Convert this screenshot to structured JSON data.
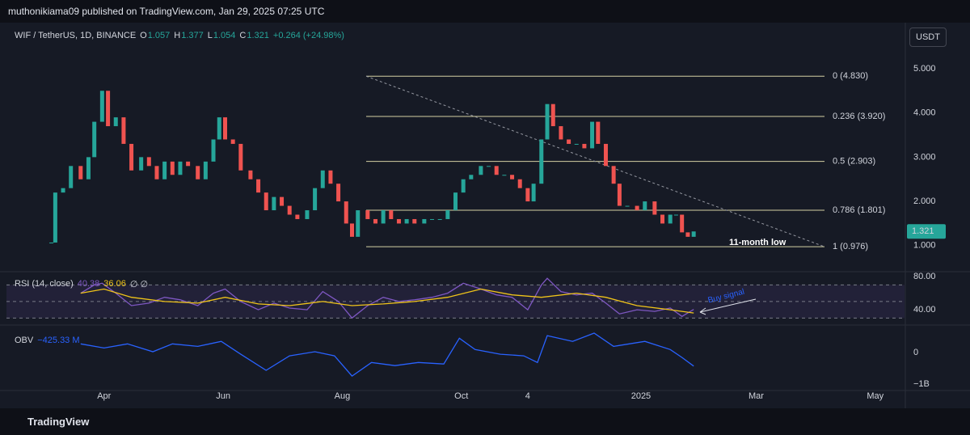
{
  "header": {
    "publisher": "muthonikiama09 published on TradingView.com, Jan 29, 2025 07:25 UTC"
  },
  "footer": {
    "brand": "TradingView"
  },
  "currency_button": "USDT",
  "chart_data": [
    {
      "type": "candlestick",
      "symbol": "WIF / TetherUS, 1D, BINANCE",
      "ohlc": [
        {
          "key": "O",
          "text": "1.057"
        },
        {
          "key": "H",
          "text": "1.377"
        },
        {
          "key": "L",
          "text": "1.054"
        },
        {
          "key": "C",
          "text": "1.321"
        }
      ],
      "change": "+0.264 (+24.98%)",
      "up_color": "#26a69a",
      "down_color": "#ef5350",
      "x": [
        -27,
        -25,
        -21,
        -17,
        -12,
        -8,
        -5,
        -1,
        2,
        6,
        10,
        14,
        19,
        23,
        27,
        31,
        35,
        39,
        43,
        48,
        52,
        56,
        59,
        62,
        66,
        70,
        75,
        79,
        83,
        87,
        91,
        95,
        99,
        104,
        108,
        112,
        116,
        120,
        124,
        127,
        130,
        135,
        139,
        143,
        147,
        151,
        155,
        159,
        164,
        168,
        172,
        176,
        180,
        184,
        188,
        193,
        197,
        201,
        205,
        209,
        213,
        217,
        220,
        224,
        227,
        230,
        234,
        238,
        242,
        246,
        250,
        253,
        257,
        261,
        264,
        268,
        273,
        277,
        282,
        286,
        290,
        293,
        296,
        299,
        302
      ],
      "values": [
        1.07,
        2.2,
        2.3,
        2.8,
        2.5,
        3.0,
        3.8,
        4.5,
        3.7,
        3.9,
        3.3,
        2.7,
        3.0,
        2.8,
        2.5,
        2.9,
        2.6,
        2.9,
        2.8,
        2.5,
        2.9,
        3.4,
        3.9,
        3.4,
        3.3,
        2.7,
        2.5,
        2.2,
        1.8,
        2.1,
        1.9,
        1.7,
        1.6,
        1.8,
        2.3,
        2.7,
        2.4,
        2.0,
        1.5,
        1.2,
        1.8,
        1.6,
        1.5,
        1.8,
        1.6,
        1.5,
        1.6,
        1.5,
        1.6,
        1.6,
        1.6,
        1.8,
        2.2,
        2.5,
        2.6,
        2.8,
        2.8,
        2.6,
        2.6,
        2.5,
        2.3,
        2.0,
        2.4,
        3.4,
        4.2,
        3.7,
        3.4,
        3.3,
        3.3,
        3.2,
        3.8,
        3.3,
        2.8,
        2.4,
        1.9,
        1.9,
        1.8,
        2.0,
        1.7,
        1.5,
        1.7,
        1.7,
        1.3,
        1.2,
        1.321
      ],
      "ylim": [
        0.43,
        6.04
      ],
      "yticks": [
        {
          "value": 5,
          "label": "5.000"
        },
        {
          "value": 4,
          "label": "4.000"
        },
        {
          "value": 3,
          "label": "3.000"
        },
        {
          "value": 2,
          "label": "2.000"
        },
        {
          "value": 1,
          "label": "1.000"
        }
      ],
      "fib_levels": [
        {
          "label": "0 (4.830)",
          "value": 4.83
        },
        {
          "label": "0.236 (3.920)",
          "value": 3.92
        },
        {
          "label": "0.5 (2.903)",
          "value": 2.903
        },
        {
          "label": "0.786 (1.801)",
          "value": 1.801
        },
        {
          "label": "1 (0.976)",
          "value": 0.976
        }
      ],
      "annotation": "11-month low",
      "grid": false
    },
    {
      "type": "line",
      "title": "RSI (14, close)",
      "extra": "∅ ∅",
      "series": [
        {
          "color": "#7e57c2",
          "x": [
            -12,
            -5,
            -1,
            6,
            14,
            23,
            31,
            39,
            48,
            56,
            62,
            70,
            79,
            87,
            95,
            104,
            112,
            120,
            127,
            135,
            143,
            151,
            159,
            168,
            176,
            184,
            193,
            201,
            209,
            217,
            224,
            227,
            234,
            242,
            250,
            257,
            264,
            273,
            282,
            290,
            296,
            302
          ],
          "values": [
            60,
            70,
            72,
            60,
            45,
            48,
            55,
            52,
            45,
            60,
            65,
            50,
            40,
            48,
            42,
            40,
            62,
            50,
            30,
            45,
            55,
            50,
            52,
            55,
            60,
            72,
            65,
            58,
            55,
            40,
            70,
            78,
            62,
            58,
            60,
            48,
            35,
            40,
            38,
            42,
            32,
            40.38
          ]
        },
        {
          "color": "#f0c419",
          "x": [
            -12,
            0,
            14,
            31,
            48,
            62,
            79,
            95,
            112,
            127,
            143,
            159,
            176,
            193,
            209,
            224,
            242,
            257,
            273,
            290,
            302
          ],
          "values": [
            60,
            65,
            55,
            50,
            48,
            55,
            47,
            45,
            50,
            45,
            47,
            50,
            55,
            65,
            58,
            55,
            60,
            55,
            45,
            40,
            36.06
          ]
        }
      ],
      "levels": [
        70,
        50,
        30
      ],
      "ylim": [
        23.5,
        85
      ],
      "yticks": [
        {
          "value": 80,
          "label": "80.00"
        },
        {
          "value": 40,
          "label": "40.00"
        }
      ],
      "annotation": "Buy signal"
    },
    {
      "type": "line",
      "title": "OBV",
      "legend_value": {
        "value": -425330000,
        "label": "−425.33 M"
      },
      "color": "#2962ff",
      "x": [
        -12,
        0,
        12,
        25,
        35,
        48,
        60,
        70,
        83,
        95,
        108,
        118,
        127,
        137,
        149,
        161,
        174,
        182,
        190,
        203,
        215,
        222,
        227,
        240,
        251,
        261,
        277,
        290,
        296,
        302
      ],
      "values": [
        280000000,
        150000000,
        280000000,
        30000000,
        280000000,
        200000000,
        360000000,
        -50000000,
        -560000000,
        -100000000,
        30000000,
        -100000000,
        -740000000,
        -310000000,
        -410000000,
        -310000000,
        -360000000,
        460000000,
        100000000,
        -50000000,
        -100000000,
        -310000000,
        540000000,
        360000000,
        620000000,
        200000000,
        360000000,
        100000000,
        -150000000,
        -425330000
      ],
      "ylim": [
        -1200000000,
        800000000
      ],
      "yticks": [
        0,
        {
          "value": -1000000000,
          "label": "−1B"
        }
      ],
      "xlim": [
        -50,
        410
      ],
      "xticks": [
        {
          "value": 0,
          "label": "Apr"
        },
        {
          "value": 61,
          "label": "Jun"
        },
        {
          "value": 122,
          "label": "Aug"
        },
        {
          "value": 183,
          "label": "Oct"
        },
        {
          "value": 217,
          "label": "4"
        },
        {
          "value": 275,
          "label": "2025"
        },
        {
          "value": 334,
          "label": "Mar"
        },
        {
          "value": 395,
          "label": "May"
        }
      ]
    }
  ]
}
